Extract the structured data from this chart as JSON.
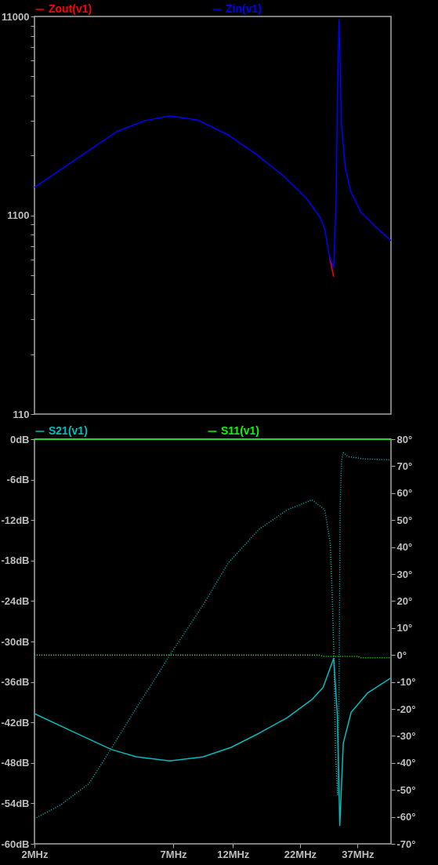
{
  "chart_data": [
    {
      "type": "line",
      "log": "xy",
      "legend": "top",
      "tick_labels": "y",
      "xlim": [
        2,
        50
      ],
      "ylim": [
        110,
        11000
      ],
      "yticks": [
        110,
        {
          "value": 220,
          "label": null
        },
        {
          "value": 330,
          "label": null
        },
        {
          "value": 440,
          "label": null
        },
        {
          "value": 550,
          "label": null
        },
        {
          "value": 660,
          "label": null
        },
        {
          "value": 770,
          "label": null
        },
        {
          "value": 880,
          "label": null
        },
        {
          "value": 990,
          "label": null
        },
        1100,
        {
          "value": 2200,
          "label": null
        },
        {
          "value": 3300,
          "label": null
        },
        {
          "value": 4400,
          "label": null
        },
        {
          "value": 5500,
          "label": null
        },
        {
          "value": 6600,
          "label": null
        },
        {
          "value": 7700,
          "label": null
        },
        {
          "value": 8800,
          "label": null
        },
        {
          "value": 9900,
          "label": null
        },
        11000
      ],
      "x": [
        2,
        2.88,
        4.2,
        5.41,
        6.79,
        8.71,
        11.5,
        14.8,
        19.1,
        23.3,
        26.4,
        27.5,
        28.7,
        29.8,
        30.5,
        30.8,
        31.3,
        32.0,
        33.1,
        34.7,
        38.1,
        42.9,
        50
      ],
      "series": [
        {
          "name": "Zout(v1)",
          "color": "#ff0000",
          "values": [
            null,
            null,
            null,
            null,
            null,
            null,
            null,
            null,
            null,
            null,
            null,
            null,
            680,
            540,
            null,
            null,
            null,
            null,
            null,
            null,
            null,
            null,
            null
          ]
        },
        {
          "name": "Zin(v1)",
          "color": "#0000ff",
          "values": [
            1520,
            2090,
            2900,
            3290,
            3480,
            3320,
            2790,
            2230,
            1720,
            1340,
            1070,
            940,
            680,
            600,
            1370,
            4080,
            10600,
            3100,
            1910,
            1460,
            1140,
            980,
            820
          ]
        }
      ]
    },
    {
      "type": "line",
      "log": "x",
      "legend": "top",
      "xlim": [
        2,
        50
      ],
      "ylim": [
        -60,
        0
      ],
      "y2lim": [
        -70,
        80
      ],
      "xticks": [
        {
          "value": 2,
          "label": "2MHz"
        },
        {
          "value": 7,
          "label": "7MHz"
        },
        {
          "value": 12,
          "label": "12MHz"
        },
        {
          "value": 22,
          "label": "22MHz"
        },
        {
          "value": 37,
          "label": "37MHz"
        }
      ],
      "yticks": [
        {
          "value": 0,
          "label": "0dB"
        },
        {
          "value": -6,
          "label": "-6dB"
        },
        {
          "value": -12,
          "label": "-12dB"
        },
        {
          "value": -18,
          "label": "-18dB"
        },
        {
          "value": -24,
          "label": "-24dB"
        },
        {
          "value": -30,
          "label": "-30dB"
        },
        {
          "value": -36,
          "label": "-36dB"
        },
        {
          "value": -42,
          "label": "-42dB"
        },
        {
          "value": -48,
          "label": "-48dB"
        },
        {
          "value": -54,
          "label": "-54dB"
        },
        {
          "value": -60,
          "label": "-60dB"
        }
      ],
      "y2ticks": [
        {
          "value": 80,
          "label": "80°"
        },
        {
          "value": 70,
          "label": "70°"
        },
        {
          "value": 60,
          "label": "60°"
        },
        {
          "value": 50,
          "label": "50°"
        },
        {
          "value": 40,
          "label": "40°"
        },
        {
          "value": 30,
          "label": "30°"
        },
        {
          "value": 20,
          "label": "20°"
        },
        {
          "value": 10,
          "label": "10°"
        },
        {
          "value": 0,
          "label": "0°"
        },
        {
          "value": -10,
          "label": "-10°"
        },
        {
          "value": -20,
          "label": "-20°"
        },
        {
          "value": -30,
          "label": "-30°"
        },
        {
          "value": -40,
          "label": "-40°"
        },
        {
          "value": -50,
          "label": "-50°"
        },
        {
          "value": -60,
          "label": "-60°"
        },
        {
          "value": -70,
          "label": "-70°"
        }
      ],
      "series": [
        {
          "name": "S21(v1)",
          "color": "#00bebe",
          "line_style": "solid",
          "x": [
            2,
            2.88,
            4.0,
            5.01,
            6.79,
            9.18,
            11.8,
            15.2,
            19.6,
            24.5,
            27.1,
            29.8,
            30.8,
            31.5,
            32.5,
            34.9,
            40.6,
            50
          ],
          "values": [
            -40.7,
            -43.5,
            -46.0,
            -47.1,
            -47.7,
            -47.1,
            -45.7,
            -43.6,
            -41.3,
            -38.6,
            -36.8,
            -32.5,
            -40.9,
            -57.3,
            -45.1,
            -40.5,
            -37.6,
            -35.4
          ]
        },
        {
          "name": "S11(v1)",
          "color": "#00ff00",
          "line_style": "solid",
          "x": [
            2,
            50
          ],
          "values": [
            0,
            0
          ]
        },
        {
          "color": "#00bebe",
          "axis": "y2",
          "line_style": "dotted",
          "x": [
            2,
            2.54,
            3.27,
            4.0,
            5.01,
            6.14,
            6.79,
            9.18,
            11.5,
            15.2,
            19.6,
            24.5,
            27.5,
            28.9,
            29.4,
            29.9,
            30.3,
            30.9,
            31.3,
            31.6,
            32.0,
            32.5,
            34,
            39,
            50
          ],
          "values": [
            -60.7,
            -55.5,
            -47.7,
            -34.7,
            -19.7,
            -6.7,
            0,
            18.6,
            34.1,
            46.6,
            53.8,
            57.5,
            53.8,
            41.4,
            22.7,
            -1.2,
            -36.5,
            -52,
            -10,
            55,
            72,
            75,
            73.5,
            72.7,
            72.3
          ]
        },
        {
          "color": "#00ff00",
          "axis": "y2",
          "line_style": "dotted",
          "x": [
            2,
            26,
            27,
            37,
            38,
            50
          ],
          "values": [
            0,
            0,
            -0.5,
            -0.5,
            -1,
            -1
          ]
        }
      ]
    }
  ]
}
